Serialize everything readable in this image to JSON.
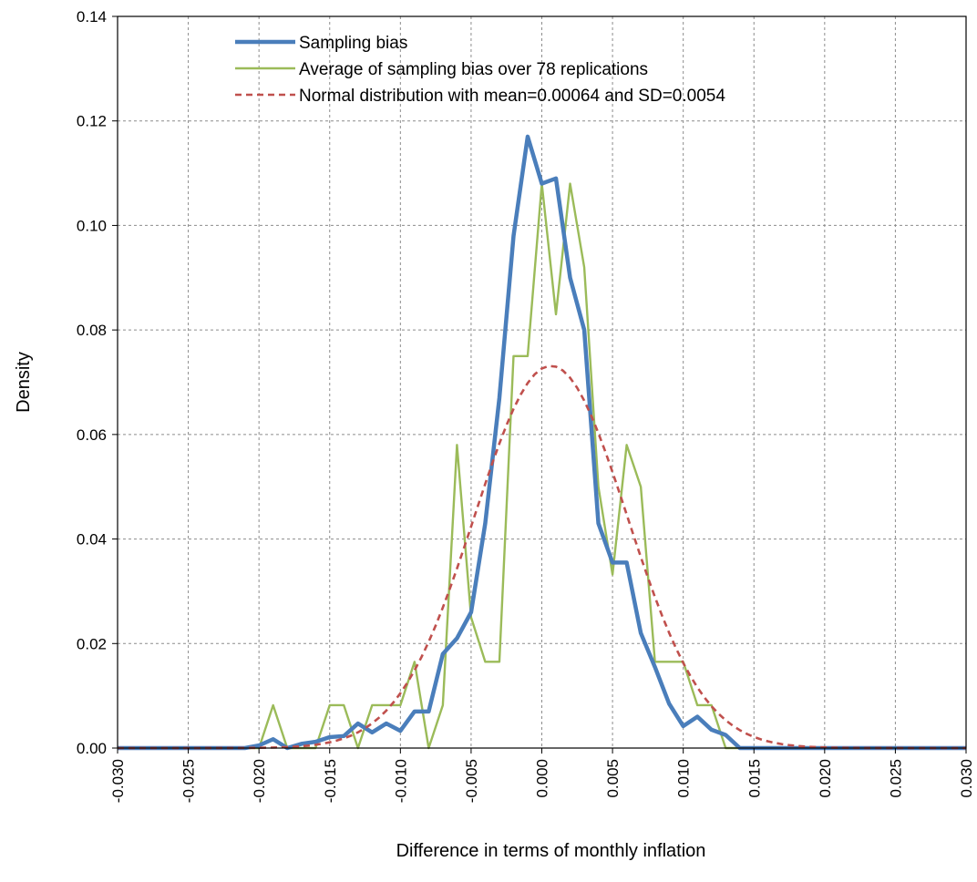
{
  "chart_data": {
    "type": "line",
    "title": "",
    "xlabel": "Difference in terms of monthly inflation",
    "ylabel": "Density",
    "xlim": [
      -0.03,
      0.03
    ],
    "ylim": [
      0,
      0.14
    ],
    "grid": true,
    "legend_position": "top",
    "x_ticks": [
      -0.03,
      -0.025,
      -0.02,
      -0.015,
      -0.01,
      -0.005,
      0.0,
      0.005,
      0.01,
      0.015,
      0.02,
      0.025,
      0.03
    ],
    "x_tick_labels": [
      "-0.030",
      "-0.025",
      "-0.020",
      "-0.015",
      "-0.010",
      "-0.005",
      "0.000",
      "0.005",
      "0.010",
      "0.015",
      "0.020",
      "0.025",
      "0.030"
    ],
    "y_ticks": [
      0,
      0.02,
      0.04,
      0.06,
      0.08,
      0.1,
      0.12,
      0.14
    ],
    "y_tick_labels": [
      "0.00",
      "0.02",
      "0.04",
      "0.06",
      "0.08",
      "0.10",
      "0.12",
      "0.14"
    ],
    "series": [
      {
        "name": "Sampling bias",
        "color": "#4a7ebb",
        "style": "solid-thick",
        "x": [
          -0.03,
          -0.029,
          -0.028,
          -0.027,
          -0.026,
          -0.025,
          -0.024,
          -0.023,
          -0.022,
          -0.021,
          -0.02,
          -0.019,
          -0.018,
          -0.017,
          -0.016,
          -0.015,
          -0.014,
          -0.013,
          -0.012,
          -0.011,
          -0.01,
          -0.009,
          -0.008,
          -0.007,
          -0.006,
          -0.005,
          -0.004,
          -0.003,
          -0.002,
          -0.001,
          0.0,
          0.001,
          0.002,
          0.003,
          0.004,
          0.005,
          0.006,
          0.007,
          0.008,
          0.009,
          0.01,
          0.011,
          0.012,
          0.013,
          0.014,
          0.015,
          0.016,
          0.017,
          0.018,
          0.019,
          0.02,
          0.021,
          0.022,
          0.023,
          0.024,
          0.025,
          0.026,
          0.027,
          0.028,
          0.029,
          0.03
        ],
        "y": [
          0,
          0,
          0,
          0,
          0,
          0,
          0,
          0,
          0,
          0,
          0.0005,
          0.0017,
          0,
          0.0008,
          0.0012,
          0.0021,
          0.0023,
          0.0047,
          0.003,
          0.0047,
          0.0033,
          0.007,
          0.007,
          0.018,
          0.021,
          0.026,
          0.043,
          0.067,
          0.098,
          0.117,
          0.108,
          0.109,
          0.09,
          0.08,
          0.043,
          0.0355,
          0.0355,
          0.022,
          0.0155,
          0.0085,
          0.0042,
          0.006,
          0.0035,
          0.0025,
          0,
          0,
          0,
          0,
          0,
          0,
          0,
          0,
          0,
          0,
          0,
          0,
          0,
          0,
          0,
          0,
          0
        ]
      },
      {
        "name": "Average of sampling bias over 78 replications",
        "color": "#9bbb59",
        "style": "solid-thin",
        "x": [
          -0.03,
          -0.029,
          -0.028,
          -0.027,
          -0.026,
          -0.025,
          -0.024,
          -0.023,
          -0.022,
          -0.021,
          -0.02,
          -0.019,
          -0.018,
          -0.017,
          -0.016,
          -0.015,
          -0.014,
          -0.013,
          -0.012,
          -0.011,
          -0.01,
          -0.009,
          -0.008,
          -0.007,
          -0.006,
          -0.005,
          -0.004,
          -0.003,
          -0.002,
          -0.001,
          0.0,
          0.001,
          0.002,
          0.003,
          0.004,
          0.005,
          0.006,
          0.007,
          0.008,
          0.009,
          0.01,
          0.011,
          0.012,
          0.013,
          0.014,
          0.015,
          0.016,
          0.017,
          0.018,
          0.019,
          0.02,
          0.021,
          0.022,
          0.023,
          0.024,
          0.025,
          0.026,
          0.027,
          0.028,
          0.029,
          0.03
        ],
        "y": [
          0,
          0,
          0,
          0,
          0,
          0,
          0,
          0,
          0,
          0,
          0,
          0.0082,
          0,
          0,
          0,
          0.0082,
          0.0082,
          0,
          0.0082,
          0.0082,
          0.0082,
          0.0165,
          0,
          0.0082,
          0.058,
          0.025,
          0.0165,
          0.0165,
          0.075,
          0.075,
          0.108,
          0.083,
          0.108,
          0.092,
          0.05,
          0.0332,
          0.058,
          0.05,
          0.0165,
          0.0165,
          0.0165,
          0.0082,
          0.0082,
          0,
          0,
          0,
          0,
          0,
          0,
          0,
          0,
          0,
          0,
          0,
          0,
          0,
          0,
          0,
          0,
          0,
          0
        ]
      },
      {
        "name": "Normal distribution with mean=0.00064 and SD=0.0054",
        "color": "#c0504d",
        "style": "dashed",
        "mean": 0.00064,
        "sd": 0.0054,
        "scale": 0.00099
      }
    ]
  }
}
